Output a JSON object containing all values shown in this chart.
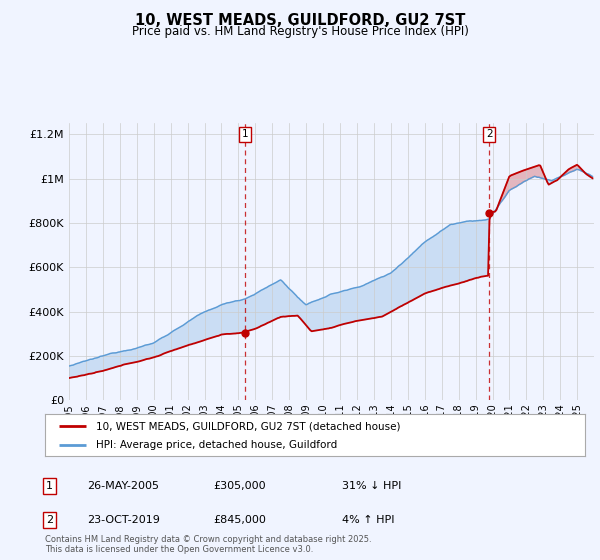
{
  "title": "10, WEST MEADS, GUILDFORD, GU2 7ST",
  "subtitle": "Price paid vs. HM Land Registry's House Price Index (HPI)",
  "legend_line1": "10, WEST MEADS, GUILDFORD, GU2 7ST (detached house)",
  "legend_line2": "HPI: Average price, detached house, Guildford",
  "annotation1_label": "1",
  "annotation1_date": "26-MAY-2005",
  "annotation1_price": "£305,000",
  "annotation1_hpi": "31% ↓ HPI",
  "annotation2_label": "2",
  "annotation2_date": "23-OCT-2019",
  "annotation2_price": "£845,000",
  "annotation2_hpi": "4% ↑ HPI",
  "footer": "Contains HM Land Registry data © Crown copyright and database right 2025.\nThis data is licensed under the Open Government Licence v3.0.",
  "hpi_color": "#5b9bd5",
  "price_color": "#c00000",
  "vline_color": "#c00000",
  "background_color": "#f0f4ff",
  "ylim": [
    0,
    1250000
  ],
  "xlim_start": 1995.0,
  "xlim_end": 2025.99,
  "marker1_x": 2005.4,
  "marker1_y": 305000,
  "marker2_x": 2019.8,
  "marker2_y": 845000,
  "yticks": [
    0,
    200000,
    400000,
    600000,
    800000,
    1000000,
    1200000
  ]
}
